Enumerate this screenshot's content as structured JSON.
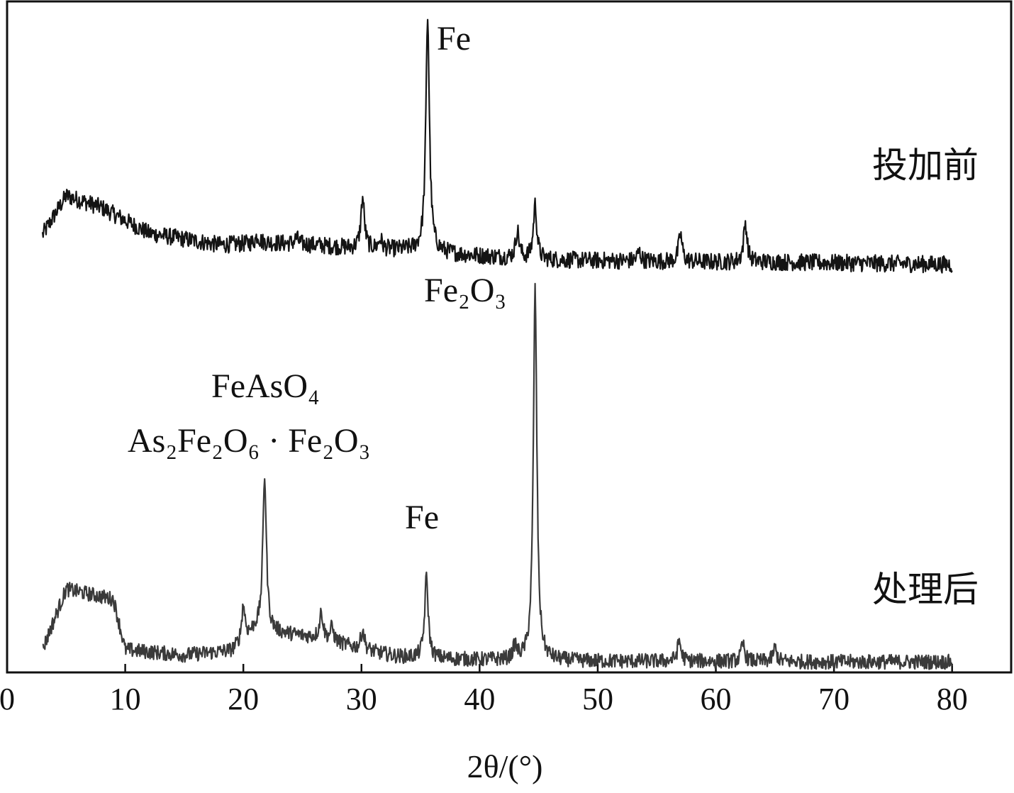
{
  "chart_data": {
    "type": "line",
    "title": "",
    "xlabel": "2θ/(°)",
    "ylabel": "",
    "xlim": [
      0,
      85
    ],
    "x_ticks": [
      0,
      10,
      20,
      30,
      40,
      50,
      60,
      70,
      80
    ],
    "y_axis_ticks": "none",
    "grid": false,
    "legend": "none",
    "colors": {
      "before": "#141414",
      "after": "#3a3a3a",
      "axis": "#111111"
    },
    "series": [
      {
        "name": "投加前",
        "label_position": "right of curve, above",
        "baseline": [
          [
            3,
            0.4
          ],
          [
            5,
            0.9
          ],
          [
            8,
            0.75
          ],
          [
            12,
            0.42
          ],
          [
            18,
            0.27
          ],
          [
            22,
            0.3
          ],
          [
            26,
            0.27
          ],
          [
            30,
            0.22
          ],
          [
            35,
            0.2
          ],
          [
            38,
            0.15
          ],
          [
            45,
            0.08
          ],
          [
            50,
            0.07
          ],
          [
            55,
            0.06
          ],
          [
            60,
            0.05
          ],
          [
            65,
            0.05
          ],
          [
            70,
            0.04
          ],
          [
            75,
            0.03
          ],
          [
            80,
            0.02
          ]
        ],
        "peaks": [
          [
            30.1,
            0.65
          ],
          [
            31.6,
            0.12
          ],
          [
            35.6,
            3.0
          ],
          [
            43.2,
            0.35
          ],
          [
            44.7,
            0.7
          ],
          [
            53.5,
            0.12
          ],
          [
            57.0,
            0.35
          ],
          [
            62.5,
            0.5
          ],
          [
            21.2,
            0.1
          ],
          [
            24.5,
            0.08
          ]
        ]
      },
      {
        "name": "处理后",
        "label_position": "right of curve, above",
        "baseline": [
          [
            3,
            0.2
          ],
          [
            5,
            1.1
          ],
          [
            9,
            0.95
          ],
          [
            10,
            0.2
          ],
          [
            15,
            0.12
          ],
          [
            19,
            0.18
          ],
          [
            20,
            0.3
          ],
          [
            21,
            0.5
          ],
          [
            23,
            0.45
          ],
          [
            26,
            0.38
          ],
          [
            28,
            0.3
          ],
          [
            30,
            0.2
          ],
          [
            33,
            0.1
          ],
          [
            36,
            0.07
          ],
          [
            40,
            0.05
          ],
          [
            45,
            0.04
          ],
          [
            50,
            0.03
          ],
          [
            60,
            0.03
          ],
          [
            70,
            0.02
          ],
          [
            80,
            0.02
          ]
        ],
        "peaks": [
          [
            20.0,
            0.55
          ],
          [
            21.8,
            2.3
          ],
          [
            26.6,
            0.4
          ],
          [
            27.5,
            0.2
          ],
          [
            30.1,
            0.3
          ],
          [
            35.5,
            1.2
          ],
          [
            43.0,
            0.2
          ],
          [
            44.7,
            5.5
          ],
          [
            56.9,
            0.3
          ],
          [
            62.3,
            0.25
          ],
          [
            65.0,
            0.2
          ]
        ]
      }
    ],
    "annotations": [
      {
        "text": "Fe",
        "x": 35.6,
        "series": "投加前"
      },
      {
        "text": "Fe₂O₃",
        "x": 44.7,
        "series": "处理后"
      },
      {
        "text": "FeAsO₄",
        "x": 21.8,
        "series": "处理后",
        "line": 1
      },
      {
        "text": "As₂Fe₂O₆ · Fe₂O₃",
        "x": 21.8,
        "series": "处理后",
        "line": 2
      },
      {
        "text": "Fe",
        "x": 35.5,
        "series": "处理后"
      }
    ]
  }
}
